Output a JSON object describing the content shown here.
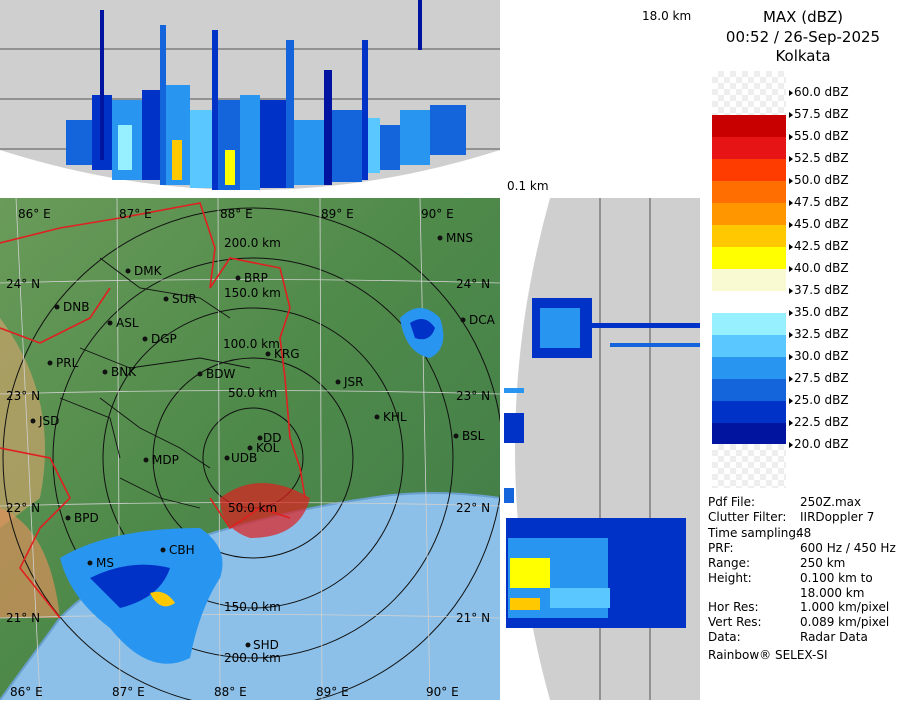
{
  "product": "MAX (dBZ)",
  "datetime": "00:52 / 26-Sep-2025",
  "station": "Kolkata",
  "top_height_label": "18.0 km",
  "bottom_height_label": "0.1 km",
  "legend": {
    "levels": [
      "60.0 dBZ",
      "57.5 dBZ",
      "55.0 dBZ",
      "52.5 dBZ",
      "50.0 dBZ",
      "47.5 dBZ",
      "45.0 dBZ",
      "42.5 dBZ",
      "40.0 dBZ",
      "37.5 dBZ",
      "35.0 dBZ",
      "32.5 dBZ",
      "30.0 dBZ",
      "27.5 dBZ",
      "25.0 dBZ",
      "22.5 dBZ",
      "20.0 dBZ"
    ],
    "colors": [
      "#a00000",
      "#c80000",
      "#e61414",
      "#ff3c00",
      "#ff6e00",
      "#ff9600",
      "#ffc800",
      "#ffff00",
      "#fafad2",
      "#ffffff",
      "#96f0ff",
      "#5ac8ff",
      "#2896f0",
      "#1464dc",
      "#0032c8",
      "#0014a0",
      "#000a82"
    ]
  },
  "info": [
    {
      "label": "Pdf File:",
      "value": "250Z.max"
    },
    {
      "label": "Clutter Filter:",
      "value": "IIRDoppler 7"
    },
    {
      "label": "Time sampling:",
      "value": "48"
    },
    {
      "label": "PRF:",
      "value": "600 Hz / 450 Hz"
    },
    {
      "label": "Range:",
      "value": "250 km"
    },
    {
      "label": "Height:",
      "value": "0.100 km to"
    },
    {
      "label": "",
      "value": "18.000 km"
    },
    {
      "label": "Hor Res:",
      "value": "1.000 km/pixel"
    },
    {
      "label": "Vert Res:",
      "value": "0.089 km/pixel"
    },
    {
      "label": "Data:",
      "value": "Radar Data"
    }
  ],
  "footer": "Rainbow® SELEX-SI",
  "map": {
    "lon_labels_top": [
      "86° E",
      "87° E",
      "88° E",
      "89° E",
      "90° E"
    ],
    "lon_labels_bottom": [
      "86° E",
      "87° E",
      "88° E",
      "89° E",
      "90° E"
    ],
    "lat_labels_left": [
      "24° N",
      "23° N",
      "22° N",
      "21° N"
    ],
    "lat_labels_right": [
      "24° N",
      "23° N",
      "22° N",
      "21° N"
    ],
    "range_rings": [
      "50.0 km",
      "100.0 km",
      "150.0 km",
      "200.0 km"
    ],
    "range_rings_south": [
      "50.0 km",
      "150.0 km",
      "200.0 km"
    ],
    "cities": [
      "MNS",
      "DMK",
      "BRP",
      "SUR",
      "DNB",
      "ASL",
      "DGP",
      "DCA",
      "PRL",
      "KRG",
      "BNK",
      "BDW",
      "JSR",
      "KHL",
      "JSD",
      "DD",
      "KOL",
      "BSL",
      "MDP",
      "UDB",
      "BPD",
      "CBH",
      "MS",
      "SHD"
    ]
  }
}
